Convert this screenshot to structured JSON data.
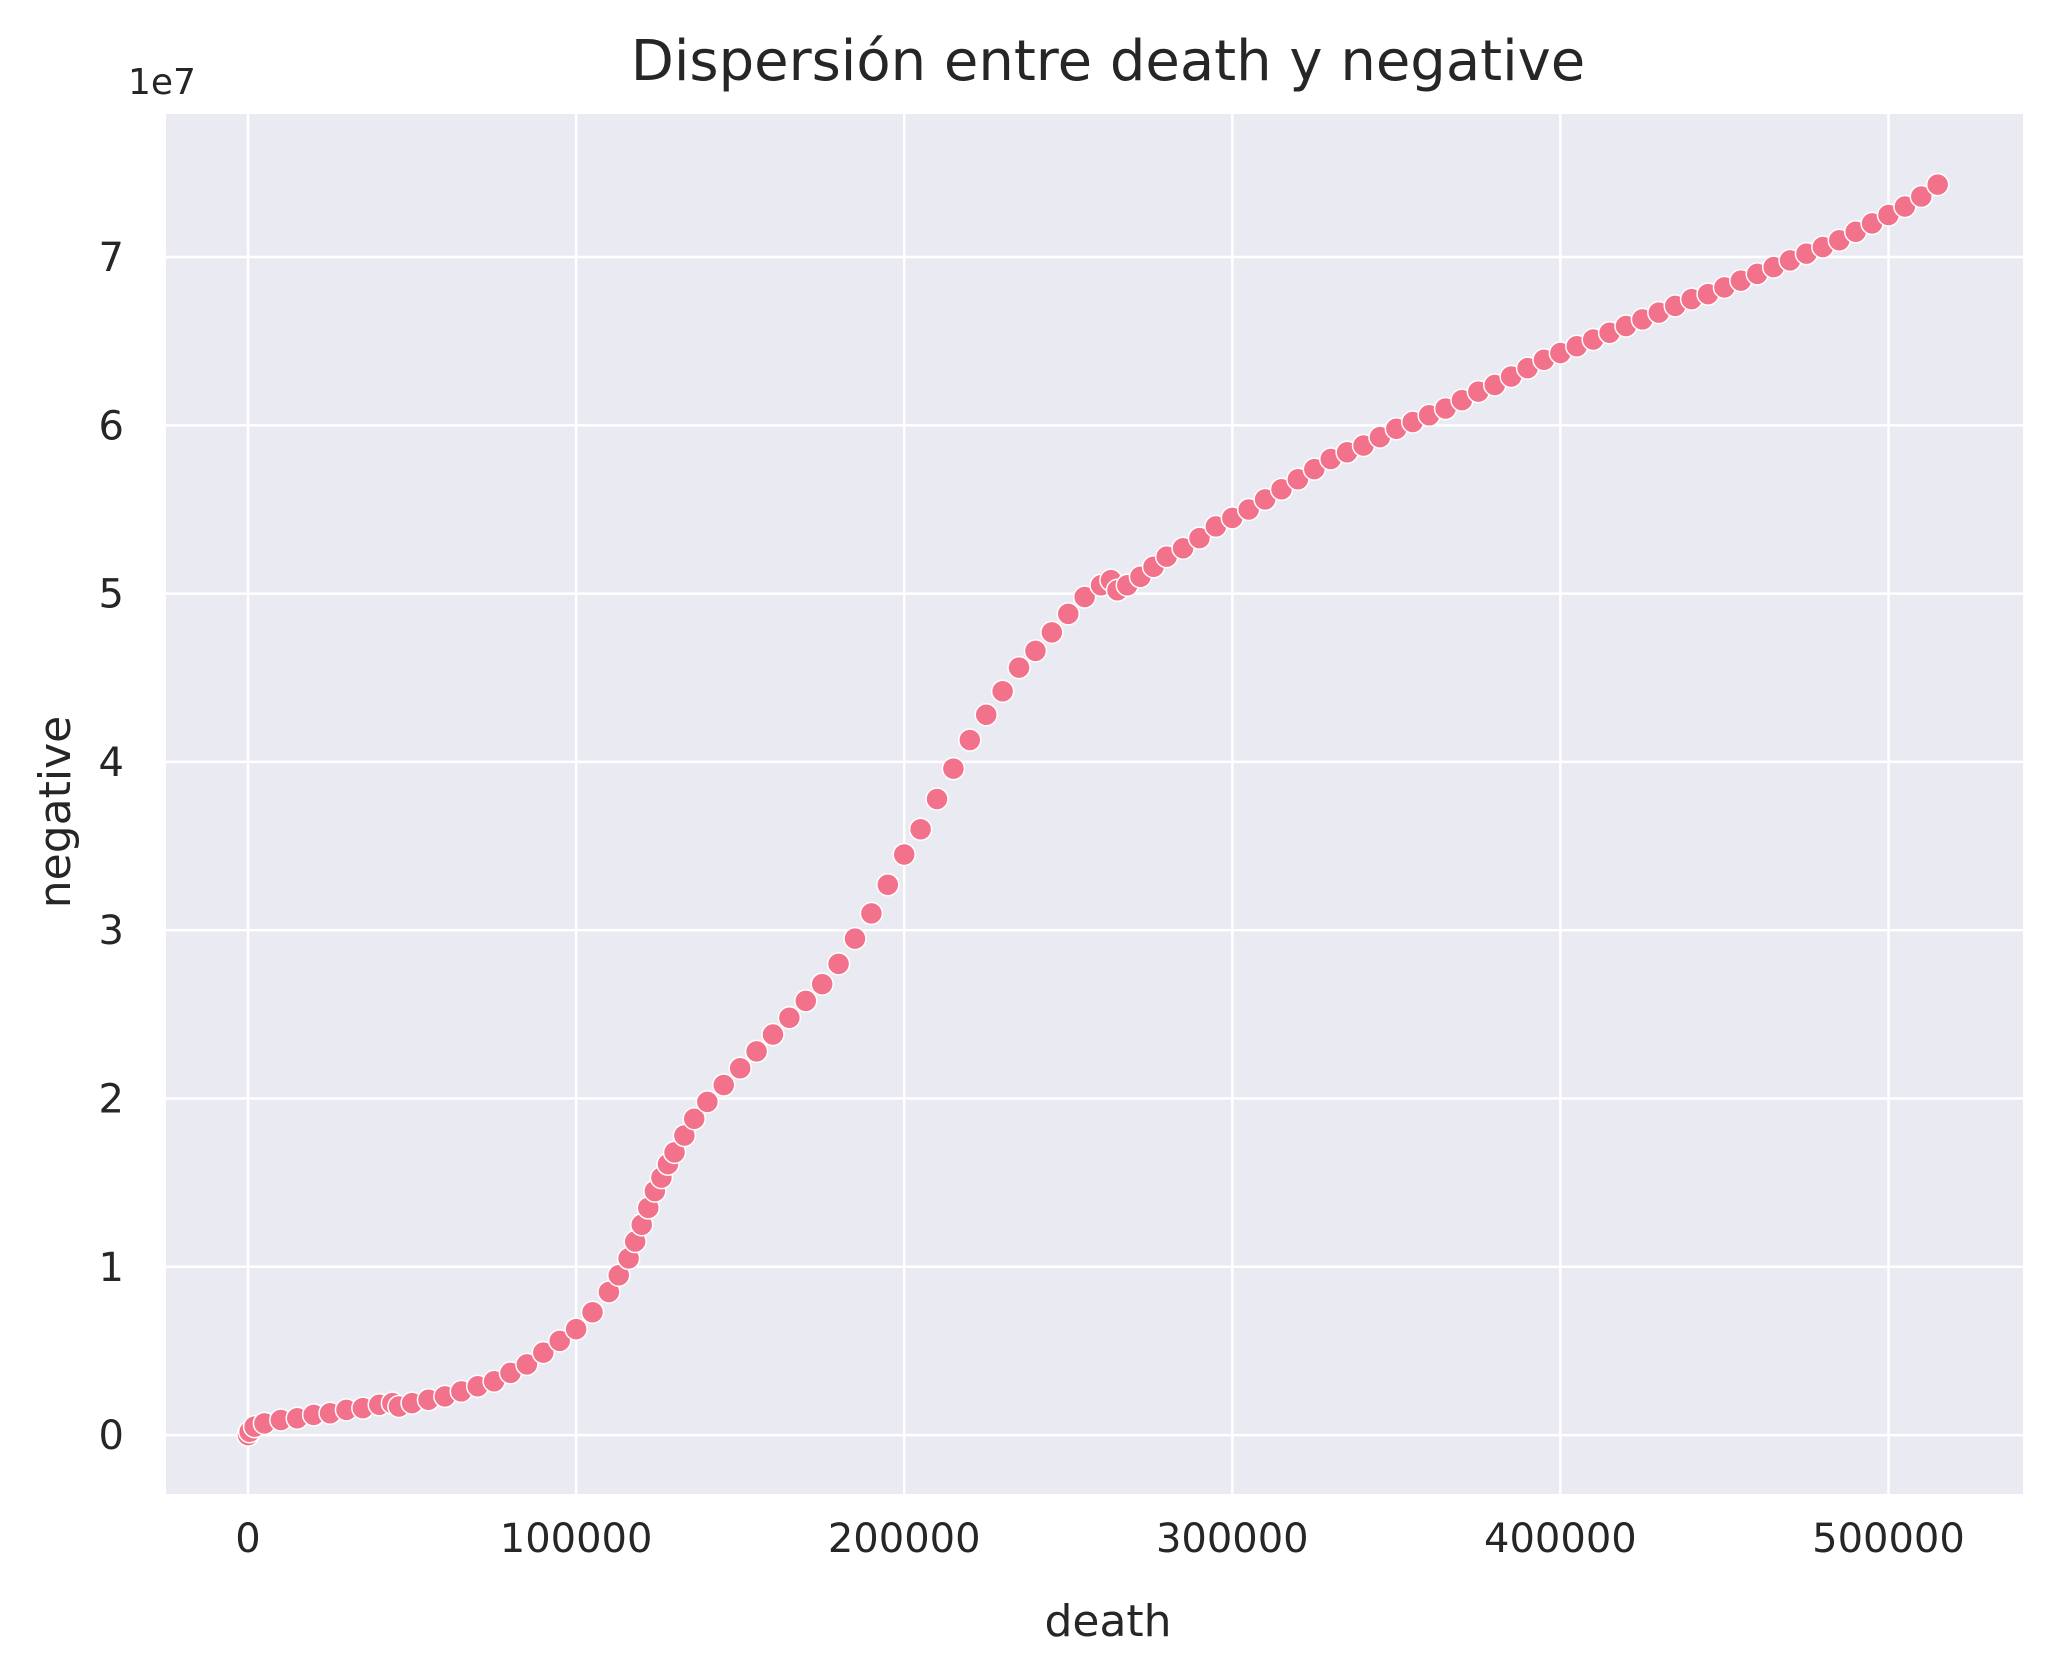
{
  "chart_data": {
    "type": "scatter",
    "title": "Dispersión entre death y negative",
    "xlabel": "death",
    "ylabel": "negative",
    "y_offset_label": "1e7",
    "xlim": [
      -25000,
      541000
    ],
    "ylim": [
      -3.5,
      78.5
    ],
    "x_ticks": [
      0,
      100000,
      200000,
      300000,
      400000,
      500000
    ],
    "x_tick_labels": [
      "0",
      "100000",
      "200000",
      "300000",
      "400000",
      "500000"
    ],
    "y_ticks": [
      0,
      10,
      20,
      30,
      40,
      50,
      60,
      70
    ],
    "y_tick_labels": [
      "0",
      "1",
      "2",
      "3",
      "4",
      "5",
      "6",
      "7"
    ],
    "y_unit_note": "y values in millions (×1e6); axis labels shown ×1e7",
    "grid": true,
    "marker_color": "#f2728c",
    "background": "#eaeaf2",
    "x": [
      0,
      500,
      2000,
      5000,
      10000,
      15000,
      20000,
      25000,
      30000,
      35000,
      40000,
      44000,
      46000,
      50000,
      55000,
      60000,
      65000,
      70000,
      75000,
      80000,
      85000,
      90000,
      95000,
      100000,
      105000,
      110000,
      113000,
      116000,
      118000,
      120000,
      122000,
      124000,
      126000,
      128000,
      130000,
      133000,
      136000,
      140000,
      145000,
      150000,
      155000,
      160000,
      165000,
      170000,
      175000,
      180000,
      185000,
      190000,
      195000,
      200000,
      205000,
      210000,
      215000,
      220000,
      225000,
      230000,
      235000,
      240000,
      245000,
      250000,
      255000,
      260000,
      263000,
      265000,
      268000,
      272000,
      276000,
      280000,
      285000,
      290000,
      295000,
      300000,
      305000,
      310000,
      315000,
      320000,
      325000,
      330000,
      335000,
      340000,
      345000,
      350000,
      355000,
      360000,
      365000,
      370000,
      375000,
      380000,
      385000,
      390000,
      395000,
      400000,
      405000,
      410000,
      415000,
      420000,
      425000,
      430000,
      435000,
      440000,
      445000,
      450000,
      455000,
      460000,
      465000,
      470000,
      475000,
      480000,
      485000,
      490000,
      495000,
      500000,
      505000,
      510000,
      515000
    ],
    "y": [
      0.0,
      0.2,
      0.5,
      0.7,
      0.9,
      1.0,
      1.2,
      1.3,
      1.5,
      1.6,
      1.8,
      1.9,
      1.7,
      1.9,
      2.1,
      2.3,
      2.6,
      2.9,
      3.2,
      3.7,
      4.2,
      4.9,
      5.6,
      6.3,
      7.3,
      8.5,
      9.5,
      10.5,
      11.5,
      12.5,
      13.5,
      14.5,
      15.3,
      16.1,
      16.8,
      17.8,
      18.8,
      19.8,
      20.8,
      21.8,
      22.8,
      23.8,
      24.8,
      25.8,
      26.8,
      28.0,
      29.5,
      31.0,
      32.7,
      34.5,
      36.0,
      37.8,
      39.6,
      41.3,
      42.8,
      44.2,
      45.6,
      46.6,
      47.7,
      48.8,
      49.8,
      50.5,
      50.8,
      50.2,
      50.5,
      51.0,
      51.6,
      52.2,
      52.7,
      53.3,
      54.0,
      54.5,
      55.0,
      55.6,
      56.2,
      56.8,
      57.4,
      58.0,
      58.4,
      58.8,
      59.3,
      59.8,
      60.2,
      60.6,
      61.0,
      61.5,
      62.0,
      62.4,
      62.9,
      63.4,
      63.9,
      64.3,
      64.7,
      65.1,
      65.5,
      65.9,
      66.3,
      66.7,
      67.1,
      67.5,
      67.8,
      68.2,
      68.6,
      69.0,
      69.4,
      69.8,
      70.2,
      70.6,
      71.0,
      71.5,
      72.0,
      72.5,
      73.0,
      73.6,
      74.3
    ]
  }
}
